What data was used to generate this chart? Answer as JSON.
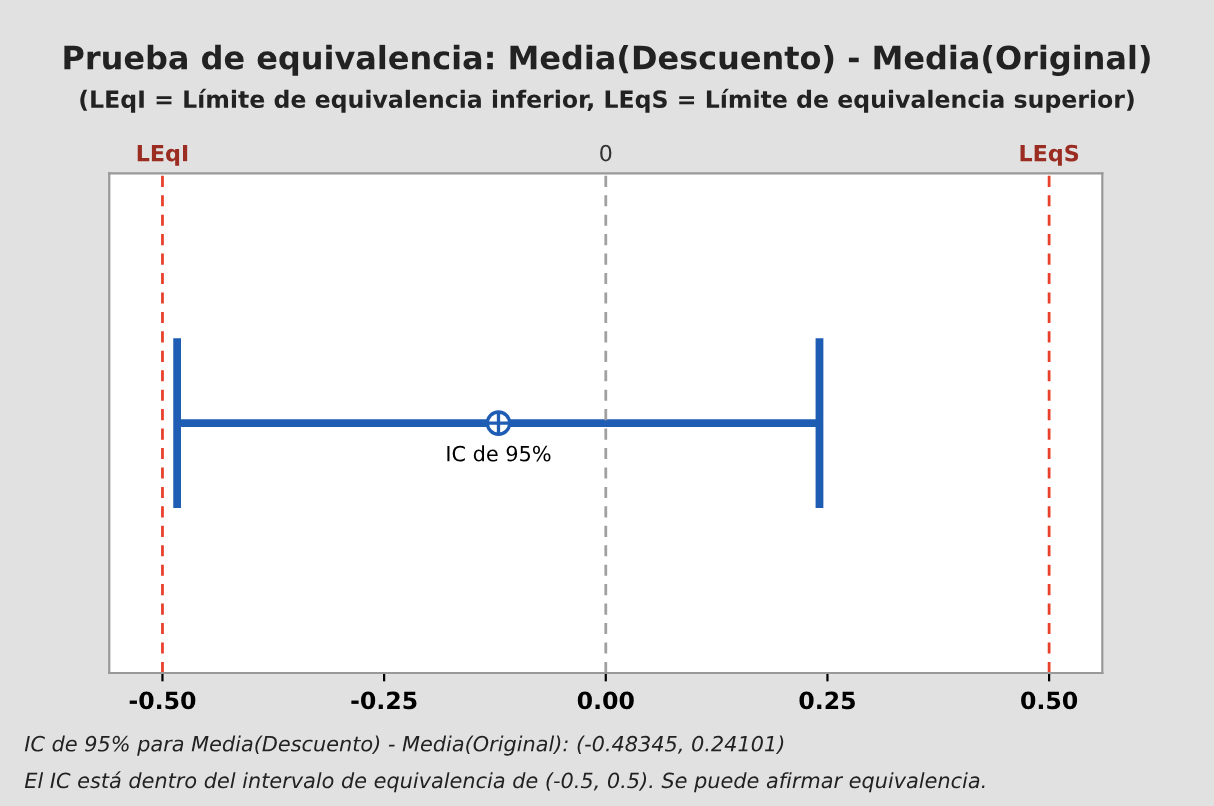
{
  "chart_data": {
    "type": "scatter",
    "orientation": "horizontal",
    "title": "Prueba de equivalencia: Media(Descuento) - Media(Original)",
    "subtitle": "(LEqI = Límite de equivalencia inferior, LEqS = Límite de equivalencia superior)",
    "categories": [
      null
    ],
    "values": [
      -0.121
    ],
    "errors": [
      [
        -0.48345,
        0.24101
      ]
    ],
    "color": "#1f5db5",
    "marker": "circle",
    "xlim": [
      -0.56,
      0.56
    ],
    "xticks": [
      {
        "value": -0.5,
        "label": "-0.50"
      },
      {
        "value": -0.25,
        "label": "-0.25"
      },
      {
        "value": 0,
        "label": "0.00"
      },
      {
        "value": 0.25,
        "label": "0.25"
      },
      {
        "value": 0.5,
        "label": "0.50"
      }
    ],
    "tick_labels": "x",
    "grid": false,
    "ref_lines": [
      {
        "axis": "x",
        "value": -0.5,
        "label": "LEqI",
        "color": "#e8402a",
        "line_style": "dashed"
      },
      {
        "axis": "x",
        "value": 0,
        "label": "0",
        "color": "#a0a0a0",
        "line_style": "dashed"
      },
      {
        "axis": "x",
        "value": 0.5,
        "label": "LEqS",
        "color": "#e8402a",
        "line_style": "dashed"
      }
    ],
    "annotations": [
      "IC de 95%",
      "IC de 95% para Media(Descuento) - Media(Original): (-0.48345, 0.24101)",
      "El IC está dentro del intervalo de equivalencia de (-0.5, 0.5). Se puede afirmar equivalencia."
    ]
  }
}
